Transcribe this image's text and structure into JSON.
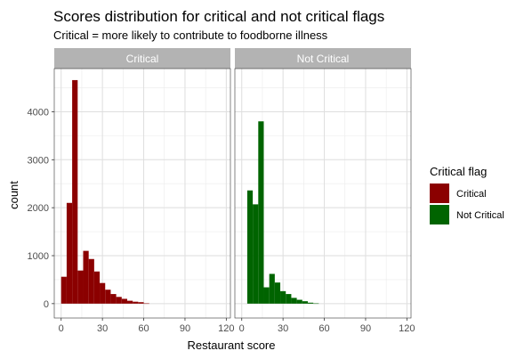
{
  "chart_data": {
    "type": "bar",
    "title": "Scores distribution for critical and not critical flags",
    "subtitle": "Critical = more likely to contribute to foodborne illness",
    "xlabel": "Restaurant score",
    "ylabel": "count",
    "xlim": [
      -5,
      123
    ],
    "ylim": [
      -300,
      4900
    ],
    "x_ticks": [
      0,
      30,
      60,
      90,
      120
    ],
    "y_ticks": [
      0,
      1000,
      2000,
      3000,
      4000
    ],
    "binwidth": 4,
    "grid": true,
    "legend_position": "right",
    "legend_title": "Critical flag",
    "facets": [
      {
        "label": "Critical",
        "color": "#8B0000",
        "bins": [
          {
            "x": 0,
            "count": 560
          },
          {
            "x": 4,
            "count": 2100
          },
          {
            "x": 8,
            "count": 4660
          },
          {
            "x": 12,
            "count": 690
          },
          {
            "x": 16,
            "count": 1100
          },
          {
            "x": 20,
            "count": 930
          },
          {
            "x": 24,
            "count": 670
          },
          {
            "x": 28,
            "count": 430
          },
          {
            "x": 32,
            "count": 290
          },
          {
            "x": 36,
            "count": 200
          },
          {
            "x": 40,
            "count": 140
          },
          {
            "x": 44,
            "count": 100
          },
          {
            "x": 48,
            "count": 60
          },
          {
            "x": 52,
            "count": 40
          },
          {
            "x": 56,
            "count": 30
          },
          {
            "x": 60,
            "count": 5
          }
        ]
      },
      {
        "label": "Not Critical",
        "color": "#006400",
        "bins": [
          {
            "x": 4,
            "count": 2360
          },
          {
            "x": 8,
            "count": 2070
          },
          {
            "x": 12,
            "count": 3800
          },
          {
            "x": 16,
            "count": 340
          },
          {
            "x": 20,
            "count": 620
          },
          {
            "x": 24,
            "count": 440
          },
          {
            "x": 28,
            "count": 260
          },
          {
            "x": 32,
            "count": 200
          },
          {
            "x": 36,
            "count": 120
          },
          {
            "x": 40,
            "count": 80
          },
          {
            "x": 44,
            "count": 50
          },
          {
            "x": 48,
            "count": 20
          },
          {
            "x": 52,
            "count": 5
          }
        ]
      }
    ],
    "legend": [
      {
        "label": "Critical",
        "color": "#8B0000"
      },
      {
        "label": "Not Critical",
        "color": "#006400"
      }
    ]
  }
}
